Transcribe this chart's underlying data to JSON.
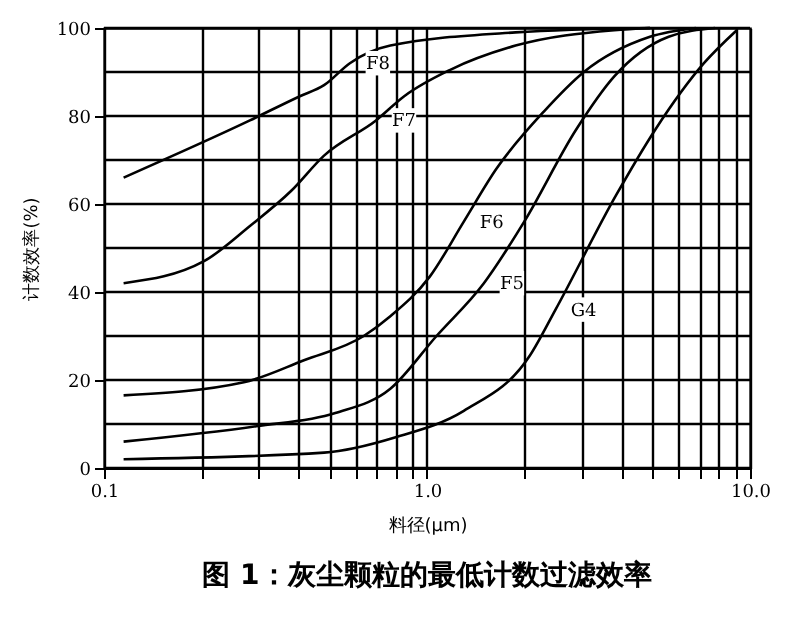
{
  "chart_data": {
    "type": "line",
    "title": "图 1：灰尘颗粒的最低计数过滤效率",
    "xlabel": "料径(μm)",
    "ylabel": "计数效率(%)",
    "log": "x",
    "xlim": [
      0.1,
      10
    ],
    "ylim": [
      0,
      100
    ],
    "xticks": [
      {
        "value": 0.1,
        "label": "0.1"
      },
      {
        "value": 0.2,
        "label": null
      },
      {
        "value": 0.3,
        "label": null
      },
      {
        "value": 0.4,
        "label": null
      },
      {
        "value": 0.5,
        "label": null
      },
      {
        "value": 0.6,
        "label": null
      },
      {
        "value": 0.7,
        "label": null
      },
      {
        "value": 0.8,
        "label": null
      },
      {
        "value": 0.9,
        "label": null
      },
      {
        "value": 1,
        "label": "1.0"
      },
      {
        "value": 2,
        "label": null
      },
      {
        "value": 3,
        "label": null
      },
      {
        "value": 4,
        "label": null
      },
      {
        "value": 5,
        "label": null
      },
      {
        "value": 6,
        "label": null
      },
      {
        "value": 7,
        "label": null
      },
      {
        "value": 8,
        "label": null
      },
      {
        "value": 9,
        "label": null
      },
      {
        "value": 10,
        "label": "10.0"
      }
    ],
    "yticks": [
      0,
      {
        "value": 10,
        "label": null
      },
      20,
      {
        "value": 30,
        "label": null
      },
      40,
      {
        "value": 50,
        "label": null
      },
      60,
      {
        "value": 70,
        "label": null
      },
      80,
      {
        "value": 90,
        "label": null
      },
      100
    ],
    "grid": true,
    "legend": false,
    "marker": "none",
    "line_style": "solid",
    "series": [
      {
        "name": "F8",
        "color": "#000000",
        "x": [
          0.115,
          0.283,
          0.404,
          0.48,
          0.577,
          0.77,
          1.88,
          4.9
        ],
        "values": [
          66,
          79,
          84.5,
          87,
          92,
          96,
          99,
          100
        ]
      },
      {
        "name": "F7",
        "color": "#000000",
        "x": [
          0.115,
          0.204,
          0.283,
          0.38,
          0.48,
          0.695,
          0.85,
          1.18,
          1.88,
          3.8,
          4.9
        ],
        "values": [
          42,
          47,
          55,
          63,
          71,
          79,
          84.5,
          90.5,
          96,
          99.5,
          100
        ]
      },
      {
        "name": "F6",
        "color": "#000000",
        "x": [
          0.115,
          0.271,
          0.416,
          0.637,
          0.77,
          1.02,
          1.3,
          1.64,
          2.3,
          3.06,
          4.9,
          6.8
        ],
        "values": [
          16.5,
          19.5,
          24.5,
          30,
          34.5,
          43.5,
          56,
          68,
          81,
          90,
          98,
          100
        ]
      },
      {
        "name": "F5",
        "color": "#000000",
        "x": [
          0.115,
          0.296,
          0.52,
          0.77,
          1.07,
          1.5,
          2.0,
          2.9,
          3.8,
          5.6,
          7.8
        ],
        "values": [
          6,
          9.5,
          12.5,
          18,
          30,
          42,
          56,
          77,
          89,
          98,
          100
        ]
      },
      {
        "name": "G4",
        "color": "#000000",
        "x": [
          0.115,
          0.48,
          0.8,
          1.3,
          2.08,
          2.5,
          3.85,
          5.1,
          7.2,
          9.1
        ],
        "values": [
          2,
          3.5,
          7,
          13,
          25.5,
          36,
          62,
          77,
          92,
          99.5
        ]
      }
    ]
  }
}
